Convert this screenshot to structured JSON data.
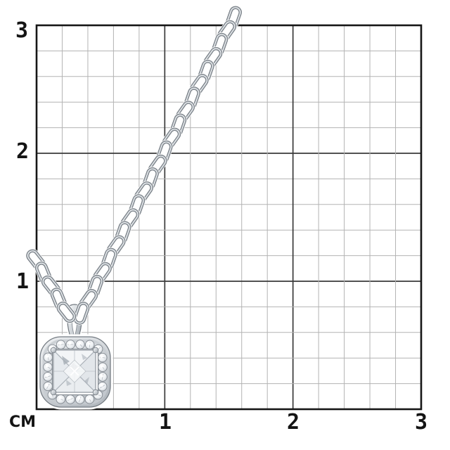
{
  "ruler": {
    "unit_label": "CM",
    "y_labels": [
      "3",
      "2",
      "1"
    ],
    "x_labels": [
      "1",
      "2",
      "3"
    ],
    "max_cm": 3,
    "minor_cells_per_cm": 5
  },
  "figure": {
    "description": "White gold cable-link chain necklace with cushion-shaped halo pendant, pave diamond border and princess-cut center diamond",
    "metal": "white gold / silver",
    "halo_stone_count": 20
  },
  "colors": {
    "background": "#ffffff",
    "grid_minor": "#b3b3b3",
    "grid_major": "#3a3a3a",
    "grid_border": "#161616",
    "label_text": "#141414",
    "metal_dark": "#6f767d",
    "metal_mid": "#9aa1a8",
    "metal_light": "#eef1f3",
    "stone_light": "#f4f6f8",
    "stone_mid": "#d9dde1"
  }
}
